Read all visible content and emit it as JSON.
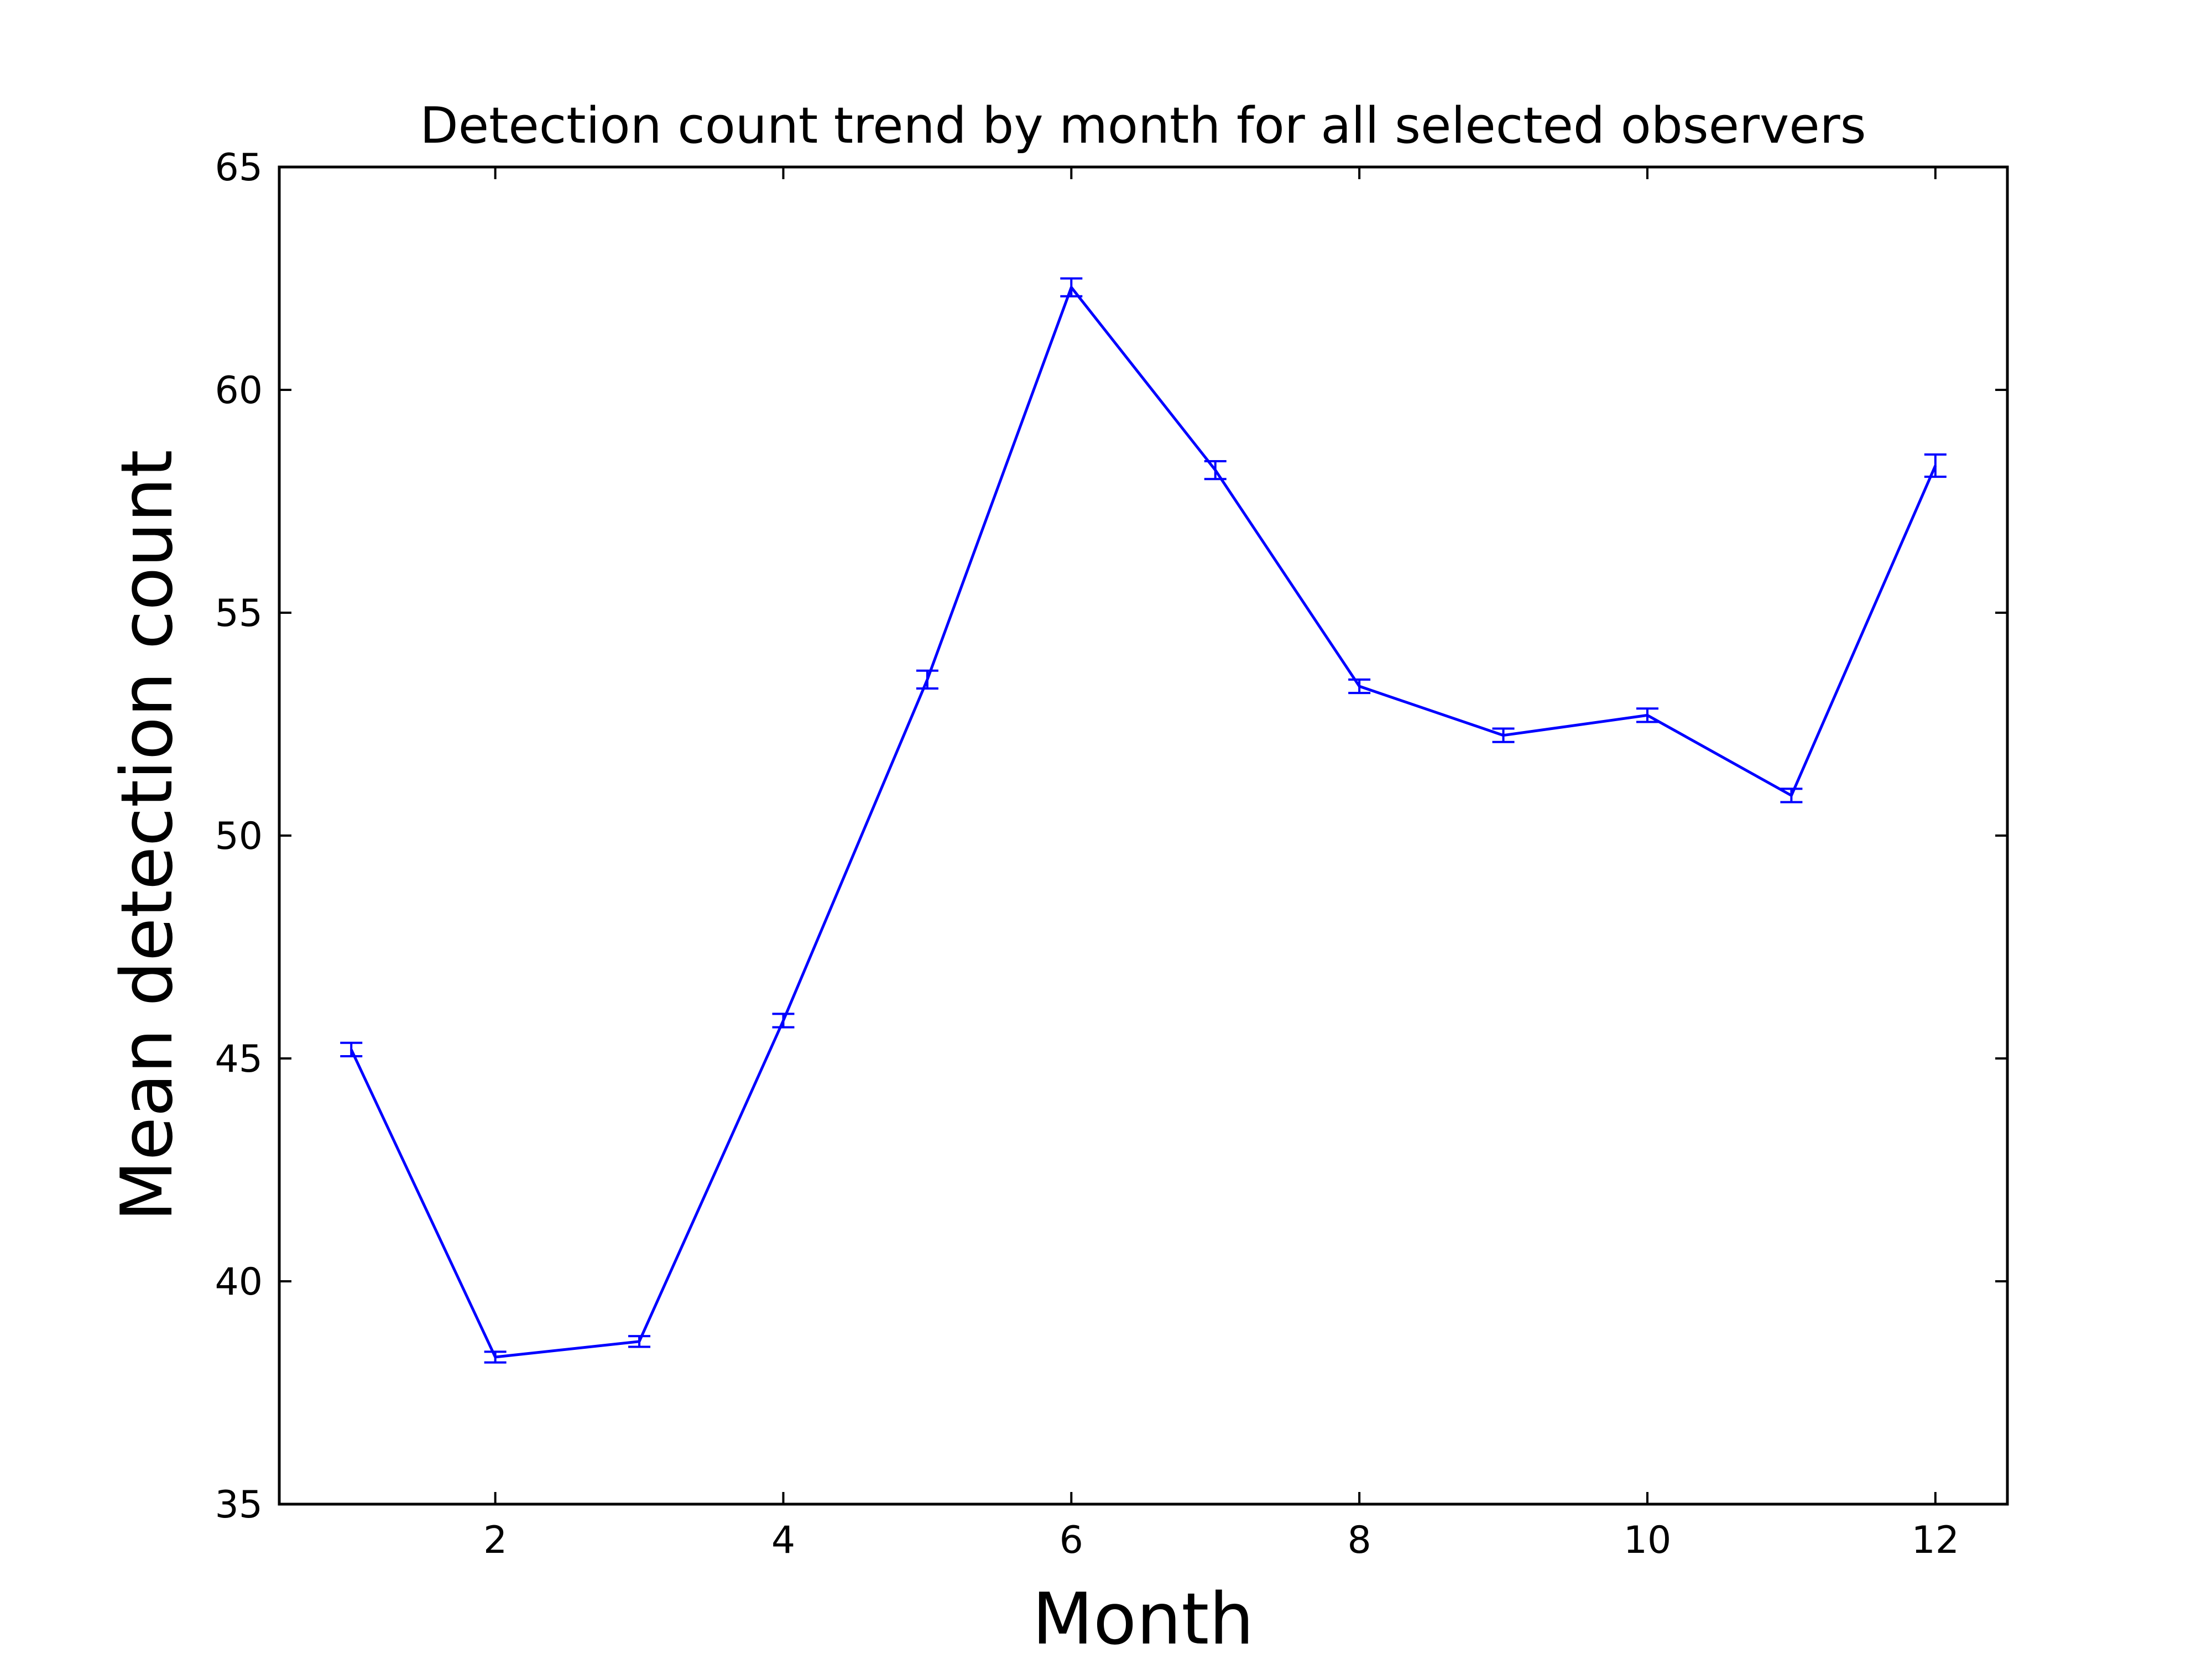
{
  "chart_data": {
    "type": "line",
    "title": "Detection count trend by month for all selected observers",
    "xlabel": "Month",
    "ylabel": "Mean detection count",
    "xlim": [
      0.5,
      12.5
    ],
    "ylim": [
      35,
      65
    ],
    "xticks": [
      2,
      4,
      6,
      8,
      10,
      12
    ],
    "yticks": [
      35,
      40,
      45,
      50,
      55,
      60,
      65
    ],
    "grid": false,
    "line_color": "#0000ff",
    "error_bars": true,
    "series": [
      {
        "x": [
          1,
          2,
          3,
          4,
          5,
          6,
          7,
          8,
          9,
          10,
          11,
          12
        ],
        "y": [
          45.2,
          38.3,
          38.65,
          45.85,
          53.5,
          62.3,
          58.2,
          53.35,
          52.25,
          52.7,
          50.9,
          58.3
        ],
        "err": [
          0.15,
          0.12,
          0.12,
          0.15,
          0.2,
          0.2,
          0.2,
          0.15,
          0.15,
          0.15,
          0.15,
          0.25
        ]
      }
    ]
  }
}
